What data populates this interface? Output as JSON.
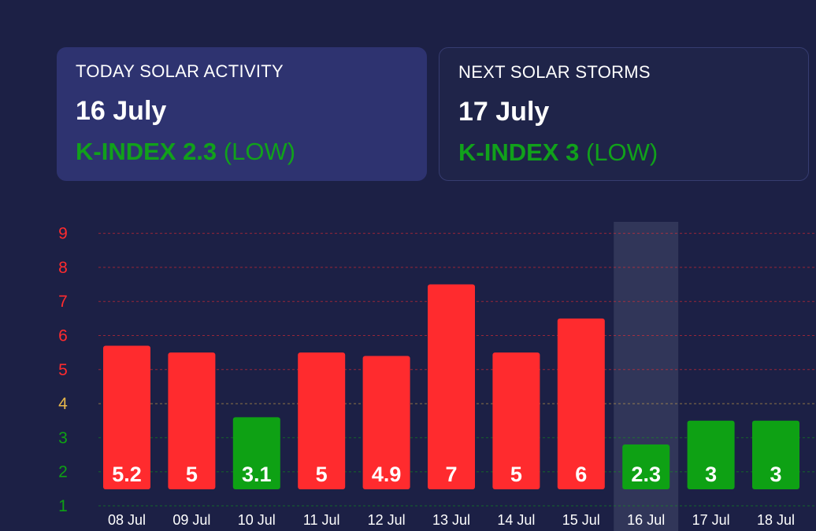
{
  "today_card": {
    "label": "TODAY SOLAR ACTIVITY",
    "date": "16 July",
    "kindex_text": "K-INDEX 2.3",
    "level": "(LOW)"
  },
  "next_card": {
    "label": "NEXT SOLAR STORMS",
    "date": "17 July",
    "kindex_text": "K-INDEX 3",
    "level": "(LOW)"
  },
  "colors": {
    "background": "#1c2045",
    "today_card": "#2e3370",
    "high": "#ff2b2e",
    "moderate": "#e8b84a",
    "low": "#0ea114",
    "current_day_highlight": "#313659"
  },
  "chart_data": {
    "type": "bar",
    "categories": [
      "08 Jul",
      "09 Jul",
      "10 Jul",
      "11 Jul",
      "12 Jul",
      "13 Jul",
      "14 Jul",
      "15 Jul",
      "16 Jul",
      "17 Jul",
      "18 Jul"
    ],
    "values": [
      5.2,
      5,
      3.1,
      5,
      4.9,
      7,
      5,
      6,
      2.3,
      3,
      3
    ],
    "bar_colors": [
      "high",
      "high",
      "low",
      "high",
      "high",
      "high",
      "high",
      "high",
      "low",
      "low",
      "low"
    ],
    "value_labels": [
      "5.2",
      "5",
      "3.1",
      "5",
      "4.9",
      "7",
      "5",
      "6",
      "2.3",
      "3",
      "3"
    ],
    "highlighted_category": "16 Jul",
    "yticks": [
      "1",
      "2",
      "3",
      "4",
      "5",
      "6",
      "7",
      "8",
      "9"
    ],
    "ytick_colors": [
      "low",
      "low",
      "low",
      "moderate",
      "high",
      "high",
      "high",
      "high",
      "high"
    ],
    "ylim": [
      1,
      9
    ],
    "grid": true
  }
}
